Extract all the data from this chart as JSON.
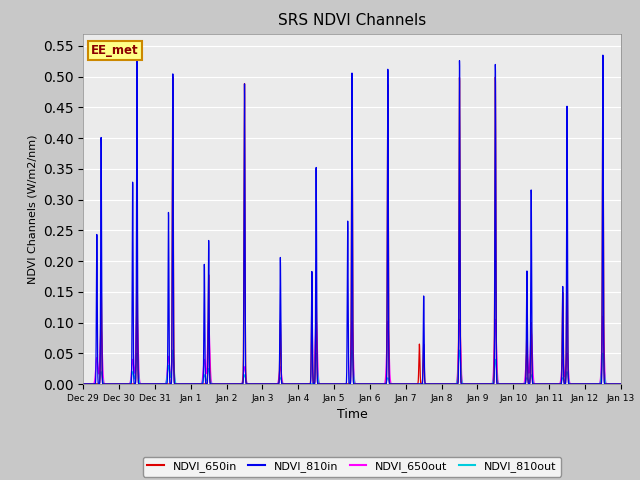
{
  "title": "SRS NDVI Channels",
  "ylabel": "NDVI Channels (W/m2/nm)",
  "xlabel": "Time",
  "ylim": [
    0.0,
    0.57
  ],
  "yticks": [
    0.0,
    0.05,
    0.1,
    0.15,
    0.2,
    0.25,
    0.3,
    0.35,
    0.4,
    0.45,
    0.5,
    0.55
  ],
  "label_box": "EE_met",
  "legend_labels": [
    "NDVI_650in",
    "NDVI_810in",
    "NDVI_650out",
    "NDVI_810out"
  ],
  "line_colors": {
    "NDVI_650in": "#dd0000",
    "NDVI_810in": "#0000ee",
    "NDVI_650out": "#ff00ff",
    "NDVI_810out": "#00ccdd"
  },
  "plot_bg": "#ebebeb",
  "fig_bg": "#c8c8c8",
  "title_fontsize": 11,
  "xtick_labels": [
    "Dec 29",
    "Dec 30",
    "Dec 31",
    "Jan 1",
    "Jan 2",
    "Jan 3",
    "Jan 4",
    "Jan 5",
    "Jan 6",
    "Jan 7",
    "Jan 8",
    "Jan 9",
    "Jan 10",
    "Jan 11",
    "Jan 12",
    "Jan 13"
  ],
  "day_peaks": {
    "peak1_810in": [
      0.401,
      0.528,
      0.505,
      0.234,
      0.49,
      0.207,
      0.355,
      0.511,
      0.516,
      0.144,
      0.528,
      0.521,
      0.316,
      0.452,
      0.535
    ],
    "peak2_810in": [
      0.245,
      0.33,
      0.28,
      0.195,
      0.0,
      0.0,
      0.183,
      0.265,
      0.0,
      0.0,
      0.0,
      0.0,
      0.185,
      0.16,
      0.0
    ],
    "peak1_650in": [
      0.172,
      0.207,
      0.5,
      0.178,
      0.49,
      0.104,
      0.143,
      0.49,
      0.49,
      0.065,
      0.5,
      0.5,
      0.1,
      0.21,
      0.5
    ],
    "peak2_650in": [
      0.0,
      0.0,
      0.0,
      0.0,
      0.0,
      0.0,
      0.13,
      0.0,
      0.0,
      0.065,
      0.0,
      0.0,
      0.1,
      0.15,
      0.0
    ],
    "peak1_650out": [
      0.09,
      0.115,
      0.045,
      0.103,
      0.028,
      0.028,
      0.105,
      0.103,
      0.102,
      0.0,
      0.105,
      0.105,
      0.085,
      0.05,
      0.11
    ],
    "peak2_650out": [
      0.043,
      0.04,
      0.045,
      0.04,
      0.0,
      0.0,
      0.0,
      0.0,
      0.0,
      0.0,
      0.0,
      0.0,
      0.05,
      0.04,
      0.0
    ],
    "peak1_810out": [
      0.02,
      0.05,
      0.055,
      0.025,
      0.015,
      0.01,
      0.05,
      0.055,
      0.01,
      0.0,
      0.055,
      0.04,
      0.015,
      0.02,
      0.05
    ],
    "peak2_810out": [
      0.0,
      0.02,
      0.03,
      0.015,
      0.0,
      0.0,
      0.0,
      0.0,
      0.0,
      0.0,
      0.0,
      0.0,
      0.01,
      0.01,
      0.0
    ]
  }
}
